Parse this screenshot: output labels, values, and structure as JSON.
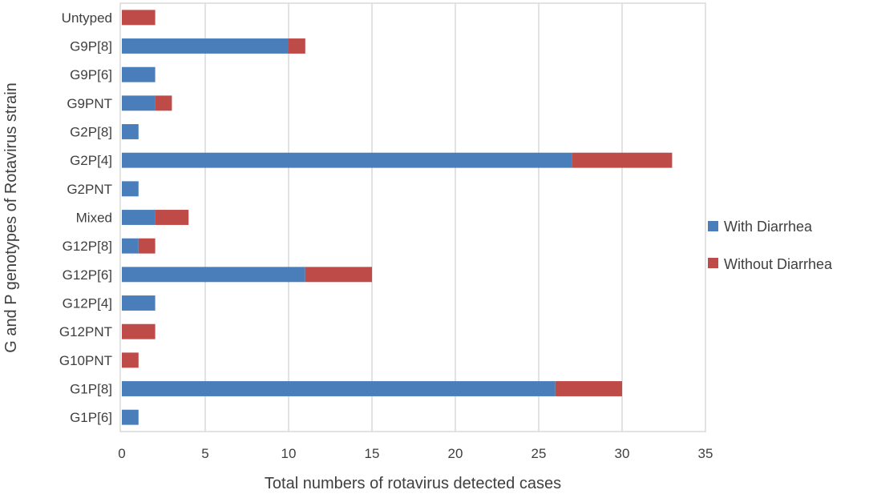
{
  "chart_data": {
    "type": "bar",
    "orientation": "horizontal",
    "stacked": true,
    "title": "",
    "xlabel": "Total numbers of rotavirus detected cases",
    "ylabel": "G and P genotypes of Rotavirus strain",
    "xlim": [
      0,
      35
    ],
    "xticks": [
      "0",
      "5",
      "10",
      "15",
      "20",
      "25",
      "30",
      "35"
    ],
    "grid": true,
    "legend_position": "right",
    "categories": [
      "Untyped",
      "G9P[8]",
      "G9P[6]",
      "G9PNT",
      "G2P[8]",
      "G2P[4]",
      "G2PNT",
      "Mixed",
      "G12P[8]",
      "G12P[6]",
      "G12P[4]",
      "G12PNT",
      "G10PNT",
      "G1P[8]",
      "G1P[6]"
    ],
    "series": [
      {
        "name": "With Diarrhea",
        "color": "#4a7ebb",
        "values": [
          0,
          10,
          2,
          2,
          1,
          27,
          1,
          2,
          1,
          11,
          2,
          0,
          0,
          26,
          1
        ]
      },
      {
        "name": "Without Diarrhea",
        "color": "#be4b48",
        "values": [
          2,
          1,
          0,
          1,
          0,
          6,
          0,
          2,
          1,
          4,
          0,
          2,
          1,
          4,
          0
        ]
      }
    ]
  }
}
